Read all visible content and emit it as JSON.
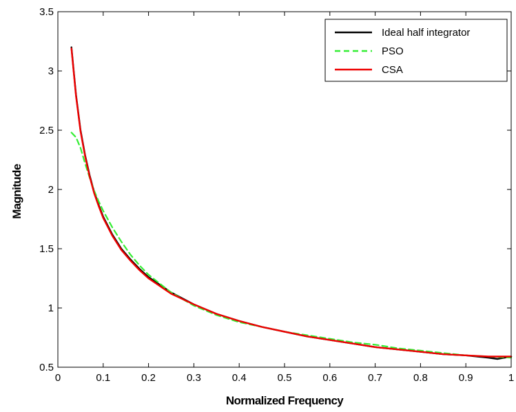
{
  "chart_data": {
    "type": "line",
    "title": "",
    "xlabel": "Normalized Frequency",
    "ylabel": "Magnitude",
    "xlim": [
      0,
      1
    ],
    "ylim": [
      0.5,
      3.5
    ],
    "xticks": [
      0,
      0.1,
      0.2,
      0.3,
      0.4,
      0.5,
      0.6,
      0.7,
      0.8,
      0.9,
      1
    ],
    "xtick_labels": [
      "0",
      "0.1",
      "0.2",
      "0.3",
      "0.4",
      "0.5",
      "0.6",
      "0.7",
      "0.8",
      "0.9",
      "1"
    ],
    "yticks": [
      0.5,
      1,
      1.5,
      2,
      2.5,
      3,
      3.5
    ],
    "ytick_labels": [
      "0.5",
      "1",
      "1.5",
      "2",
      "2.5",
      "3",
      "3.5"
    ],
    "grid": false,
    "legend_position": "top-right",
    "series": [
      {
        "name": "Ideal half integrator",
        "color": "#000000",
        "dash": "solid",
        "x": [
          0.03,
          0.04,
          0.05,
          0.06,
          0.07,
          0.08,
          0.09,
          0.1,
          0.12,
          0.14,
          0.16,
          0.18,
          0.2,
          0.25,
          0.3,
          0.35,
          0.4,
          0.45,
          0.5,
          0.55,
          0.6,
          0.65,
          0.7,
          0.75,
          0.8,
          0.85,
          0.9,
          0.95,
          0.97,
          1.0
        ],
        "y": [
          3.2,
          2.8,
          2.5,
          2.29,
          2.12,
          1.98,
          1.87,
          1.77,
          1.62,
          1.5,
          1.41,
          1.33,
          1.26,
          1.13,
          1.03,
          0.95,
          0.89,
          0.84,
          0.8,
          0.76,
          0.73,
          0.7,
          0.67,
          0.65,
          0.63,
          0.61,
          0.6,
          0.58,
          0.57,
          0.59
        ]
      },
      {
        "name": "PSO",
        "color": "#33ee33",
        "dash": "dashed",
        "x": [
          0.03,
          0.04,
          0.05,
          0.06,
          0.07,
          0.08,
          0.09,
          0.1,
          0.12,
          0.14,
          0.16,
          0.18,
          0.2,
          0.25,
          0.3,
          0.35,
          0.4,
          0.45,
          0.5,
          0.55,
          0.6,
          0.65,
          0.7,
          0.75,
          0.8,
          0.85,
          0.9,
          0.95,
          1.0
        ],
        "y": [
          2.48,
          2.44,
          2.35,
          2.22,
          2.1,
          1.99,
          1.9,
          1.82,
          1.68,
          1.56,
          1.45,
          1.36,
          1.28,
          1.13,
          1.02,
          0.94,
          0.88,
          0.84,
          0.8,
          0.77,
          0.74,
          0.71,
          0.69,
          0.66,
          0.64,
          0.62,
          0.6,
          0.59,
          0.58
        ]
      },
      {
        "name": "CSA",
        "color": "#ee0000",
        "dash": "solid",
        "x": [
          0.03,
          0.04,
          0.05,
          0.06,
          0.07,
          0.08,
          0.09,
          0.1,
          0.12,
          0.14,
          0.16,
          0.18,
          0.2,
          0.25,
          0.3,
          0.35,
          0.4,
          0.45,
          0.5,
          0.55,
          0.6,
          0.65,
          0.7,
          0.75,
          0.8,
          0.85,
          0.9,
          0.95,
          1.0
        ],
        "y": [
          3.19,
          2.79,
          2.49,
          2.28,
          2.11,
          1.97,
          1.86,
          1.76,
          1.61,
          1.49,
          1.4,
          1.32,
          1.25,
          1.12,
          1.03,
          0.95,
          0.89,
          0.84,
          0.8,
          0.76,
          0.73,
          0.7,
          0.67,
          0.65,
          0.63,
          0.61,
          0.6,
          0.59,
          0.59
        ]
      }
    ]
  }
}
